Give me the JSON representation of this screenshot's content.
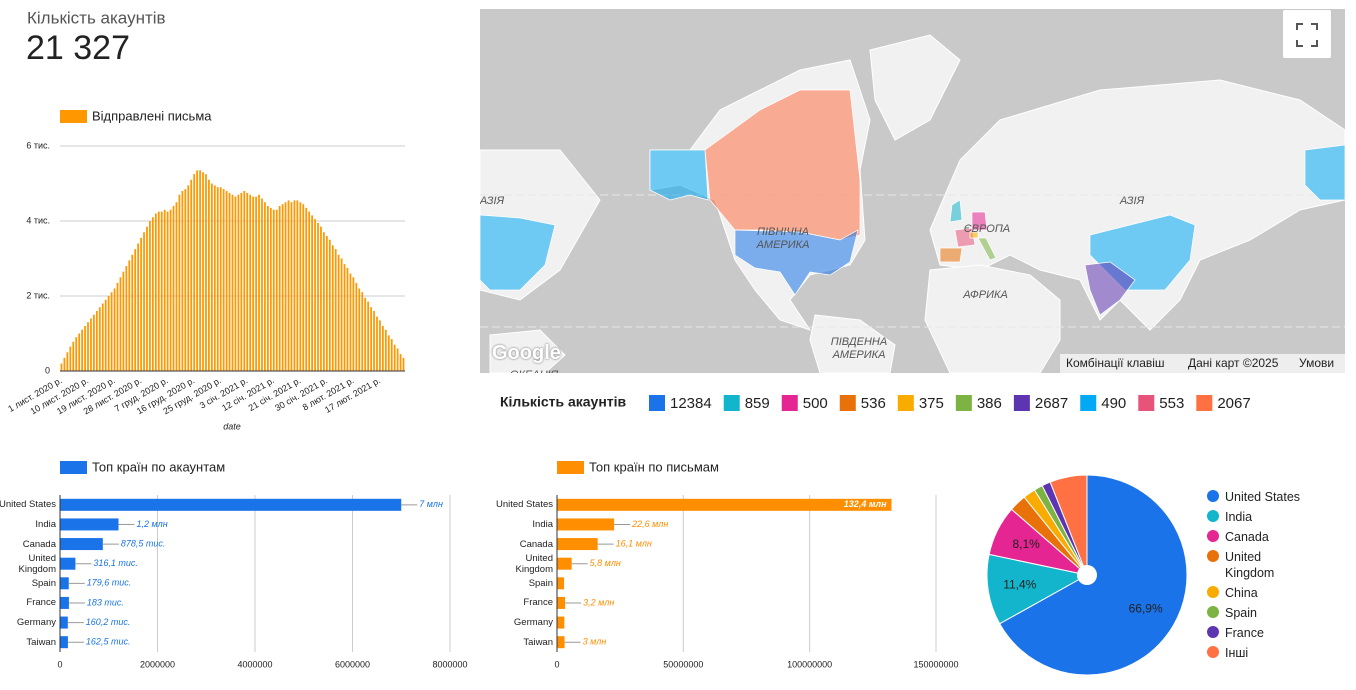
{
  "scorecard": {
    "title": "Кількість акаунтів",
    "value": "21 327"
  },
  "chart_data": [
    {
      "type": "column",
      "xlabel": "date",
      "categories": [
        "1 лист. 2020 р.",
        null,
        null,
        null,
        null,
        null,
        null,
        null,
        null,
        "10 лист. 2020 р.",
        null,
        null,
        null,
        null,
        null,
        null,
        null,
        null,
        "19 лист. 2020 р.",
        null,
        null,
        null,
        null,
        null,
        null,
        null,
        null,
        "28 лист. 2020 р.",
        null,
        null,
        null,
        null,
        null,
        null,
        null,
        null,
        "7 груд. 2020 р.",
        null,
        null,
        null,
        null,
        null,
        null,
        null,
        null,
        "16 груд. 2020 р.",
        null,
        null,
        null,
        null,
        null,
        null,
        null,
        null,
        "25 груд. 2020 р.",
        null,
        null,
        null,
        null,
        null,
        null,
        null,
        null,
        "3 січ. 2021 р.",
        null,
        null,
        null,
        null,
        null,
        null,
        null,
        null,
        "12 січ. 2021 р.",
        null,
        null,
        null,
        null,
        null,
        null,
        null,
        null,
        "21 січ. 2021 р.",
        null,
        null,
        null,
        null,
        null,
        null,
        null,
        null,
        "30 січ. 2021 р.",
        null,
        null,
        null,
        null,
        null,
        null,
        null,
        null,
        "8 лют. 2021 р.",
        null,
        null,
        null,
        null,
        null,
        null,
        null,
        null,
        "17 лют. 2021 р.",
        null,
        null,
        null,
        null,
        null,
        null,
        null,
        null
      ],
      "series": [
        {
          "name": "Відправлені письма",
          "color": "#ff9800",
          "values": [
            200,
            350,
            500,
            650,
            780,
            900,
            1000,
            1100,
            1200,
            1300,
            1400,
            1500,
            1600,
            1700,
            1800,
            1900,
            2000,
            2100,
            2200,
            2350,
            2500,
            2650,
            2800,
            2950,
            3100,
            3250,
            3400,
            3550,
            3700,
            3850,
            4000,
            4100,
            4200,
            4250,
            4250,
            4300,
            4250,
            4300,
            4400,
            4500,
            4700,
            4800,
            4850,
            4950,
            5100,
            5250,
            5350,
            5350,
            5300,
            5250,
            5100,
            5000,
            4950,
            4900,
            4900,
            4850,
            4800,
            4750,
            4700,
            4650,
            4700,
            4750,
            4800,
            4750,
            4700,
            4650,
            4650,
            4700,
            4600,
            4500,
            4400,
            4350,
            4300,
            4300,
            4400,
            4450,
            4500,
            4550,
            4500,
            4550,
            4550,
            4500,
            4450,
            4350,
            4250,
            4150,
            4050,
            3950,
            3850,
            3700,
            3600,
            3500,
            3350,
            3250,
            3100,
            3000,
            2850,
            2750,
            2600,
            2500,
            2350,
            2200,
            2100,
            1950,
            1850,
            1700,
            1600,
            1450,
            1350,
            1200,
            1100,
            950,
            850,
            700,
            600,
            450,
            350
          ]
        }
      ],
      "ylim": [
        0,
        6000
      ],
      "yticks": [
        0,
        {
          "value": 2000,
          "label": "2 тис."
        },
        {
          "value": 4000,
          "label": "4 тис."
        },
        {
          "value": 6000,
          "label": "6 тис."
        }
      ],
      "grid": true
    },
    {
      "type": "geo",
      "legend_title": "Кількість акаунтів",
      "values": [
        12384,
        859,
        500,
        536,
        375,
        386,
        2687,
        490,
        553,
        2067
      ],
      "colors": [
        "#1a73e8",
        "#12b5cb",
        "#e52592",
        "#e8710a",
        "#f9ab00",
        "#7cb342",
        "#5e35b1",
        "#03a9f4",
        "#e8537a",
        "#ff7043"
      ],
      "region_labels": [
        "АЗІЯ",
        "АЗІЯ",
        "ПІВНІЧНА АМЕРИКА",
        "ЄВРОПА",
        "АФРИКА",
        "ПІВДЕННА АМЕРИКА",
        "ОКЕАНІЯ"
      ],
      "logo": "Google",
      "attribution": [
        "Комбінації клавіш",
        "Дані карт ©2025",
        "Умови"
      ]
    },
    {
      "type": "hbar",
      "categories": [
        "United States",
        "India",
        "Canada",
        "United Kingdom",
        "Spain",
        "France",
        "Germany",
        "Taiwan"
      ],
      "series": [
        {
          "name": "Топ країн по акаунтам",
          "color": "#1a73e8",
          "values": [
            7000000,
            1200000,
            878500,
            316100,
            179600,
            183000,
            160200,
            162500
          ],
          "value_labels": [
            "7 млн",
            "1,2 млн",
            "878,5 тис.",
            "316,1 тис.",
            "179,6 тис.",
            "183 тис.",
            "160,2 тис.",
            "162,5 тис."
          ]
        }
      ],
      "xlim": [
        0,
        8000000
      ],
      "xticks": [
        0,
        2000000,
        4000000,
        6000000,
        8000000
      ],
      "grid": true
    },
    {
      "type": "hbar",
      "categories": [
        "United States",
        "India",
        "Canada",
        "United Kingdom",
        "Spain",
        "France",
        "Germany",
        "Taiwan"
      ],
      "series": [
        {
          "name": "Топ країн по письмам",
          "color": "#ff8f00",
          "values": [
            132400000,
            22600000,
            16100000,
            5800000,
            2800000,
            3200000,
            2900000,
            3000000
          ],
          "value_labels": [
            "132,4 млн",
            "22,6 млн",
            "16,1 млн",
            "5,8 млн",
            null,
            "3,2 млн",
            null,
            "3 млн"
          ]
        }
      ],
      "xlim": [
        0,
        150000000
      ],
      "xticks": [
        0,
        50000000,
        100000000,
        150000000
      ],
      "grid": true
    },
    {
      "type": "pie",
      "categories": [
        "United States",
        "India",
        "Canada",
        "United Kingdom",
        "China",
        "Spain",
        "France",
        "Інші"
      ],
      "values": [
        66.9,
        11.4,
        8.1,
        2.8,
        2.0,
        1.4,
        1.4,
        6.0
      ],
      "value_labels": [
        "66,9%",
        "11,4%",
        "8,1%",
        null,
        null,
        null,
        null,
        null
      ],
      "colors": [
        "#1a73e8",
        "#12b5cb",
        "#e52592",
        "#e8710a",
        "#f9ab00",
        "#7cb342",
        "#5e35b1",
        "#ff7043"
      ]
    }
  ]
}
